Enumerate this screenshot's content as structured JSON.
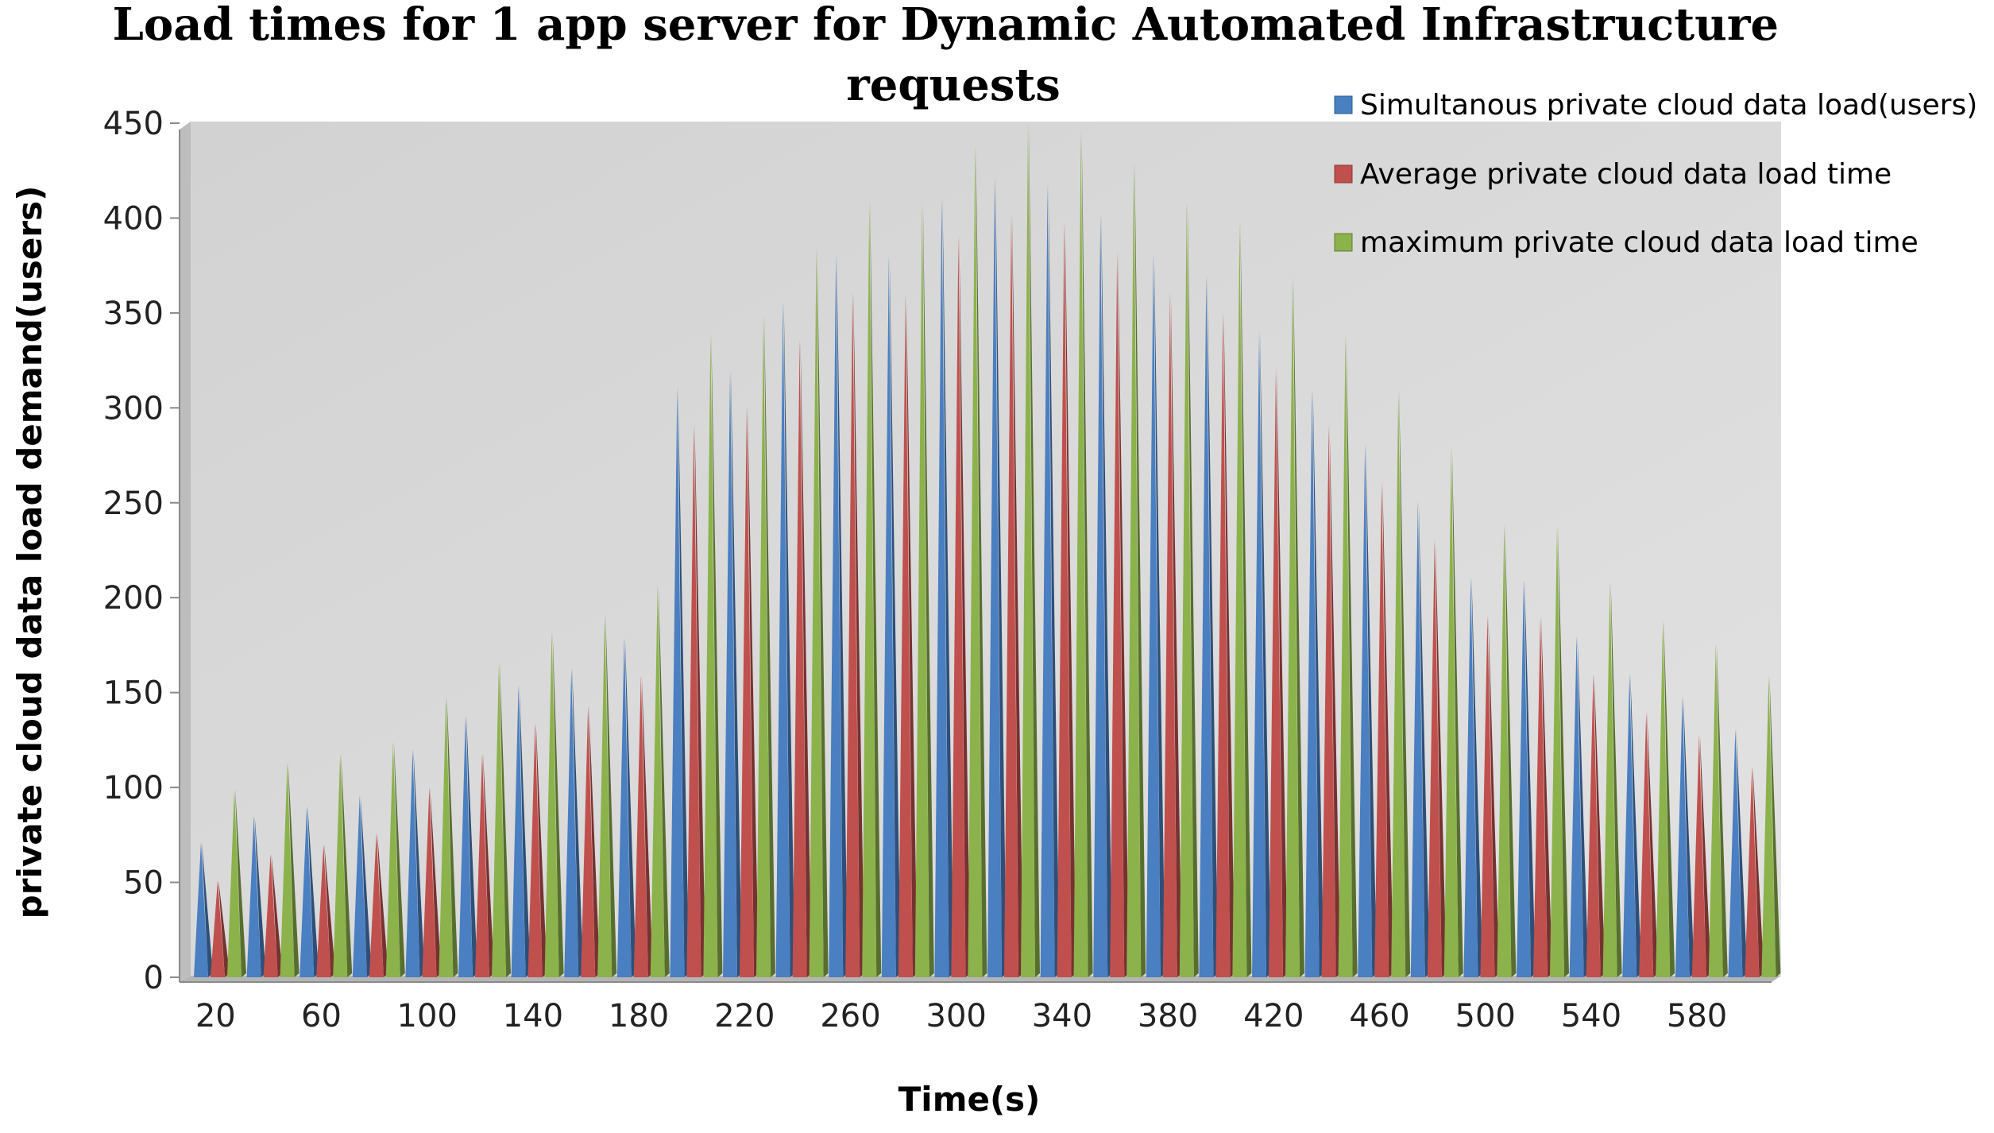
{
  "chart_data": {
    "type": "bar",
    "title": "Load times for 1 app server for Dynamic Automated Infrastructure requests",
    "title_lines": [
      "Load times for 1 app server for Dynamic Automated Infrastructure",
      "requests"
    ],
    "xlabel": "Time(s)",
    "ylabel": "private cloud data load demand(users)",
    "ylim": [
      0,
      450
    ],
    "yticks": [
      0,
      50,
      100,
      150,
      200,
      250,
      300,
      350,
      400,
      450
    ],
    "x_tick_labels": [
      "20",
      "60",
      "100",
      "140",
      "180",
      "220",
      "260",
      "300",
      "340",
      "380",
      "420",
      "460",
      "500",
      "540",
      "580"
    ],
    "categories": [
      "20",
      "40",
      "60",
      "80",
      "100",
      "120",
      "140",
      "160",
      "180",
      "200",
      "220",
      "240",
      "260",
      "280",
      "300",
      "320",
      "340",
      "360",
      "380",
      "400",
      "420",
      "440",
      "460",
      "480",
      "500",
      "520",
      "540",
      "560",
      "580",
      "600"
    ],
    "legend_position": "top-right",
    "grid": false,
    "series": [
      {
        "name": "Simultanous private cloud data  load(users)",
        "color": "#4a7fc1",
        "values": [
          71,
          85,
          90,
          96,
          120,
          138,
          154,
          163,
          179,
          311,
          320,
          356,
          381,
          380,
          411,
          422,
          418,
          402,
          381,
          370,
          341,
          310,
          281,
          251,
          211,
          210,
          180,
          160,
          148,
          131
        ]
      },
      {
        "name": "Average private cloud data load time",
        "color": "#c0504d",
        "values": [
          51,
          65,
          70,
          76,
          100,
          118,
          134,
          143,
          159,
          291,
          301,
          336,
          361,
          360,
          391,
          402,
          398,
          382,
          361,
          350,
          321,
          291,
          261,
          231,
          191,
          190,
          160,
          140,
          128,
          111
        ]
      },
      {
        "name": "maximum  private cloud data load time",
        "color": "#8cb24b",
        "values": [
          99,
          113,
          118,
          124,
          148,
          166,
          182,
          191,
          207,
          339,
          349,
          384,
          409,
          408,
          439,
          450,
          446,
          430,
          409,
          398,
          369,
          339,
          309,
          279,
          239,
          238,
          208,
          188,
          176,
          159
        ]
      }
    ]
  }
}
